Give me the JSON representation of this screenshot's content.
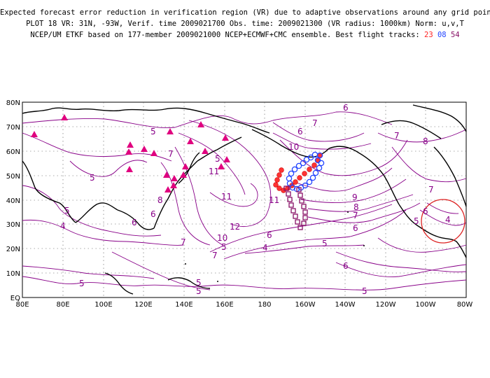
{
  "titles": {
    "line1": "Expected forecast error reduction in verification region (VR) due to adaptive observations around any grid point.",
    "line2": "PLOT 18 VR: 31N, -93W, Verif. time 2009021700 Obs. time: 2009021300 (VR radius: 1000km) Norm: u,v,T",
    "line3_prefix": "NCEP/UM ETKF based on 177-member 2009021000 NCEP+ECMWF+CMC ensemble. Best flight tracks:",
    "track_red": "23",
    "track_blue": "08",
    "track_purple": "54"
  },
  "colors": {
    "contour": "#880088",
    "coast": "#000000",
    "track_red": "#ff2222",
    "track_blue": "#2244ff",
    "track_purple": "#881166",
    "triangle": "#e0007f",
    "vr_circle": "#dd2222"
  },
  "map": {
    "lon_labels": [
      "80E",
      "80E",
      "100E",
      "120E",
      "140E",
      "160E",
      "180",
      "160W",
      "140W",
      "120W",
      "100W",
      "80W"
    ],
    "lat_labels": [
      "80N",
      "70N",
      "60N",
      "50N",
      "40N",
      "30N",
      "20N",
      "10N",
      "EQ"
    ],
    "contour_labels": [
      "5",
      "7",
      "5",
      "5",
      "4",
      "6",
      "8",
      "6",
      "7",
      "5",
      "11",
      "10",
      "12",
      "11",
      "11",
      "10",
      "9",
      "8",
      "7",
      "6",
      "5",
      "4",
      "5",
      "6",
      "7",
      "8",
      "7",
      "6",
      "5",
      "4",
      "6",
      "5",
      "5",
      "7",
      "6",
      "6",
      "7",
      "5",
      "5"
    ]
  }
}
